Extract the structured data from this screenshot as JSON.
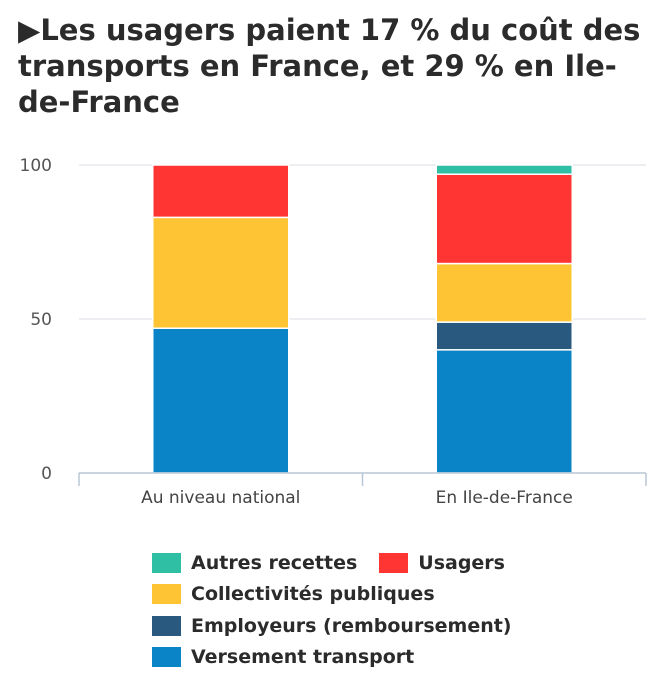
{
  "title": "Les usagers paient 17 % du coût des transports en France, et 29 % en Ile-de-France",
  "title_marker": "▶",
  "chart_data": {
    "type": "bar",
    "stacked": true,
    "categories": [
      "Au niveau national",
      "En Ile-de-France"
    ],
    "series": [
      {
        "name": "Versement transport",
        "color": "#0a84c6",
        "values": [
          47,
          40
        ]
      },
      {
        "name": "Employeurs (remboursement)",
        "color": "#2a5980",
        "values": [
          0,
          9
        ]
      },
      {
        "name": "Collectivités publiques",
        "color": "#fec434",
        "values": [
          36,
          19
        ]
      },
      {
        "name": "Usagers",
        "color": "#fe3532",
        "values": [
          17,
          29
        ]
      },
      {
        "name": "Autres recettes",
        "color": "#2fbfa4",
        "values": [
          0,
          3
        ]
      }
    ],
    "ylim": [
      0,
      100
    ],
    "yticks": [
      "0",
      "50",
      "100"
    ],
    "grid": true,
    "legend_position": "bottom"
  },
  "legend_rows": [
    [
      {
        "label": "Autres recettes",
        "color": "#2fbfa4"
      },
      {
        "label": "Usagers",
        "color": "#fe3532"
      }
    ],
    [
      {
        "label": "Collectivités publiques",
        "color": "#fec434"
      }
    ],
    [
      {
        "label": "Employeurs (remboursement)",
        "color": "#2a5980"
      }
    ],
    [
      {
        "label": "Versement transport",
        "color": "#0a84c6"
      }
    ]
  ]
}
